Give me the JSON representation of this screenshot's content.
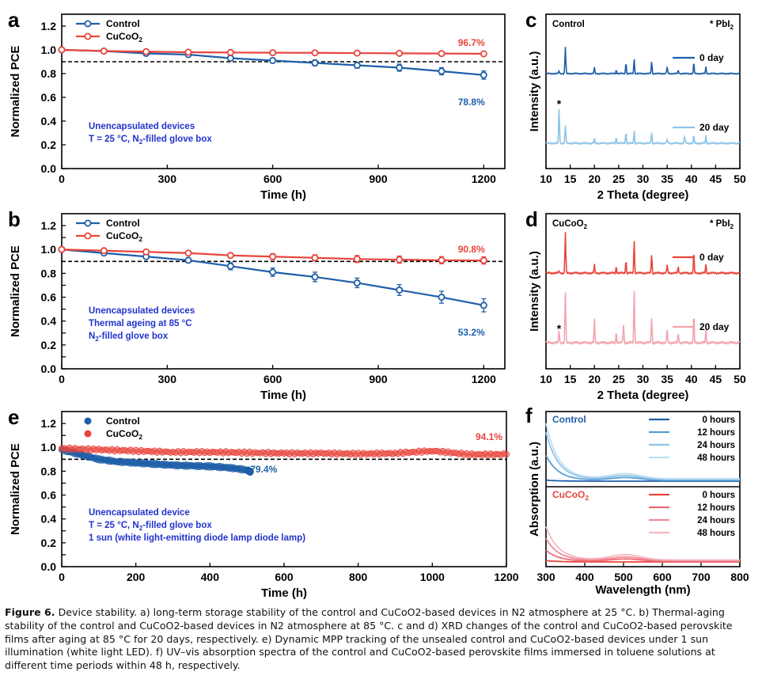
{
  "colors": {
    "control": "#1f5fa8",
    "cucoo2": "#e8453c",
    "control_light": "#8ec4e8",
    "cucoo2_light": "#f4a3ad",
    "label_blue": "#2233cc"
  },
  "chart_data": [
    {
      "id": "a",
      "type": "line",
      "panel_label": "a",
      "xlabel": "Time (h)",
      "ylabel": "Normalized PCE",
      "xlim": [
        0,
        1260
      ],
      "ylim": [
        0,
        1.3
      ],
      "xticks": [
        0,
        300,
        600,
        900,
        1200
      ],
      "yticks": [
        0.0,
        0.2,
        0.4,
        0.6,
        0.8,
        1.0,
        1.2
      ],
      "ytick_labels": [
        "0.0",
        "0.2",
        "0.4",
        "0.6",
        "0.8",
        "1.0",
        "1.2"
      ],
      "reference_line": 0.9,
      "legend": [
        "Control",
        "CuCoO2"
      ],
      "series": [
        {
          "name": "Control",
          "x": [
            0,
            120,
            240,
            360,
            480,
            600,
            720,
            840,
            960,
            1080,
            1200
          ],
          "y": [
            1.0,
            0.99,
            0.97,
            0.96,
            0.93,
            0.91,
            0.89,
            0.87,
            0.85,
            0.82,
            0.788
          ],
          "err": [
            0,
            0.005,
            0.01,
            0.01,
            0.015,
            0.02,
            0.025,
            0.025,
            0.03,
            0.03,
            0.035
          ]
        },
        {
          "name": "CuCoO2",
          "x": [
            0,
            120,
            240,
            360,
            480,
            600,
            720,
            840,
            960,
            1080,
            1200
          ],
          "y": [
            1.0,
            0.99,
            0.985,
            0.98,
            0.978,
            0.976,
            0.975,
            0.973,
            0.971,
            0.969,
            0.967
          ],
          "err": [
            0,
            0.004,
            0.004,
            0.005,
            0.005,
            0.005,
            0.006,
            0.006,
            0.006,
            0.006,
            0.006
          ]
        }
      ],
      "annotations": [
        "96.7%",
        "78.8%"
      ],
      "note_lines": [
        "Unencapsulated devices",
        "T = 25 °C, N2-filled glove box"
      ]
    },
    {
      "id": "b",
      "type": "line",
      "panel_label": "b",
      "xlabel": "Time (h)",
      "ylabel": "Normalized PCE",
      "xlim": [
        0,
        1260
      ],
      "ylim": [
        0,
        1.3
      ],
      "xticks": [
        0,
        300,
        600,
        900,
        1200
      ],
      "yticks": [
        0.0,
        0.1,
        0.2,
        0.3,
        0.4,
        0.5,
        0.6,
        0.7,
        0.8,
        0.9,
        1.0,
        1.1,
        1.2
      ],
      "ytick_labels": [
        "0.0",
        "0.1",
        "0.2",
        "0.3",
        "0.4",
        "0.5",
        "0.6",
        "0.7",
        "0.8",
        "0.9",
        "1.0",
        "1.1",
        "1.2"
      ],
      "reference_line": 0.9,
      "legend": [
        "Control",
        "CuCoO2"
      ],
      "series": [
        {
          "name": "Control",
          "x": [
            0,
            120,
            240,
            360,
            480,
            600,
            720,
            840,
            960,
            1080,
            1200
          ],
          "y": [
            1.0,
            0.97,
            0.94,
            0.91,
            0.86,
            0.81,
            0.77,
            0.72,
            0.66,
            0.6,
            0.532
          ],
          "err": [
            0,
            0.01,
            0.015,
            0.02,
            0.03,
            0.035,
            0.04,
            0.04,
            0.045,
            0.05,
            0.055
          ]
        },
        {
          "name": "CuCoO2",
          "x": [
            0,
            120,
            240,
            360,
            480,
            600,
            720,
            840,
            960,
            1080,
            1200
          ],
          "y": [
            1.0,
            0.99,
            0.98,
            0.97,
            0.95,
            0.94,
            0.93,
            0.92,
            0.915,
            0.91,
            0.908
          ],
          "err": [
            0,
            0.01,
            0.015,
            0.015,
            0.02,
            0.025,
            0.025,
            0.03,
            0.03,
            0.03,
            0.03
          ]
        }
      ],
      "annotations": [
        "90.8%",
        "53.2%"
      ],
      "note_lines": [
        "Unencapsulated devices",
        "Thermal ageing at 85 °C",
        "N2-filled glove box"
      ]
    },
    {
      "id": "e",
      "type": "scatter",
      "panel_label": "e",
      "xlabel": "Time (h)",
      "ylabel": "Normalized PCE",
      "xlim": [
        0,
        1200
      ],
      "ylim": [
        0,
        1.3
      ],
      "xticks": [
        0,
        200,
        400,
        600,
        800,
        1000,
        1200
      ],
      "yticks": [
        0.0,
        0.1,
        0.2,
        0.3,
        0.4,
        0.5,
        0.6,
        0.7,
        0.8,
        0.9,
        1.0,
        1.1,
        1.2
      ],
      "ytick_labels": [
        "0.0",
        "0.1",
        "0.2",
        "0.3",
        "0.4",
        "0.5",
        "0.6",
        "0.7",
        "0.8",
        "0.9",
        "1.0",
        "1.1",
        "1.2"
      ],
      "reference_line": 0.9,
      "legend": [
        "Control",
        "CuCoO2"
      ],
      "series": [
        {
          "name": "Control",
          "x": [
            0,
            50,
            100,
            150,
            200,
            250,
            300,
            350,
            400,
            450,
            500,
            510
          ],
          "y": [
            0.98,
            0.94,
            0.9,
            0.88,
            0.87,
            0.86,
            0.85,
            0.845,
            0.84,
            0.83,
            0.81,
            0.794
          ]
        },
        {
          "name": "CuCoO2",
          "x": [
            0,
            100,
            200,
            300,
            400,
            500,
            600,
            700,
            800,
            900,
            1000,
            1100,
            1200
          ],
          "y": [
            0.99,
            0.98,
            0.97,
            0.96,
            0.96,
            0.955,
            0.95,
            0.95,
            0.945,
            0.95,
            0.97,
            0.94,
            0.941
          ]
        }
      ],
      "annotations": [
        "94.1%",
        "79.4%"
      ],
      "note_lines": [
        "Unencapsulated device",
        "T = 25 °C, N2-filled glove box",
        "1 sun (white light-emitting diode lamp diode lamp)"
      ]
    },
    {
      "id": "c",
      "type": "line",
      "panel_label": "c",
      "title": "Control",
      "marker_label": "* PbI2",
      "xlabel": "2 Theta (degree)",
      "ylabel": "Intensity (a.u.)",
      "xlim": [
        10,
        50
      ],
      "xticks": [
        10,
        15,
        20,
        25,
        30,
        35,
        40,
        45,
        50
      ],
      "series": [
        {
          "name": "0 day",
          "peaks": [
            [
              14.0,
              1.0
            ],
            [
              12.7,
              0.1
            ],
            [
              20.0,
              0.22
            ],
            [
              24.5,
              0.12
            ],
            [
              26.5,
              0.4
            ],
            [
              28.2,
              0.55
            ],
            [
              31.8,
              0.45
            ],
            [
              35.0,
              0.25
            ],
            [
              37.3,
              0.12
            ],
            [
              40.5,
              0.4
            ],
            [
              43.0,
              0.25
            ]
          ]
        },
        {
          "name": "20 day",
          "peaks": [
            [
              12.7,
              1.0
            ],
            [
              14.0,
              0.5
            ],
            [
              20.0,
              0.12
            ],
            [
              24.5,
              0.15
            ],
            [
              26.5,
              0.3
            ],
            [
              28.2,
              0.35
            ],
            [
              31.8,
              0.3
            ],
            [
              35.0,
              0.1
            ],
            [
              38.6,
              0.2
            ],
            [
              40.5,
              0.2
            ],
            [
              43.0,
              0.2
            ]
          ]
        }
      ]
    },
    {
      "id": "d",
      "type": "line",
      "panel_label": "d",
      "title": "CuCoO2",
      "marker_label": "* PbI2",
      "xlabel": "2 Theta (degree)",
      "ylabel": "Intensity (a.u.)",
      "xlim": [
        10,
        50
      ],
      "xticks": [
        10,
        15,
        20,
        25,
        30,
        35,
        40,
        45,
        50
      ],
      "series": [
        {
          "name": "0 day",
          "peaks": [
            [
              14.0,
              1.0
            ],
            [
              12.7,
              0.05
            ],
            [
              20.0,
              0.2
            ],
            [
              24.5,
              0.15
            ],
            [
              26.5,
              0.3
            ],
            [
              28.2,
              0.8
            ],
            [
              31.8,
              0.45
            ],
            [
              35.0,
              0.2
            ],
            [
              37.3,
              0.15
            ],
            [
              40.5,
              0.5
            ],
            [
              43.0,
              0.2
            ]
          ]
        },
        {
          "name": "20 day",
          "peaks": [
            [
              12.7,
              0.25
            ],
            [
              14.0,
              1.0
            ],
            [
              20.0,
              0.45
            ],
            [
              24.5,
              0.2
            ],
            [
              26.0,
              0.35
            ],
            [
              28.2,
              1.05
            ],
            [
              31.8,
              0.5
            ],
            [
              35.0,
              0.25
            ],
            [
              37.3,
              0.18
            ],
            [
              40.5,
              0.55
            ],
            [
              43.0,
              0.25
            ]
          ]
        }
      ]
    },
    {
      "id": "f",
      "type": "line",
      "panel_label": "f",
      "xlabel": "Wavelength (nm)",
      "ylabel": "Absorption (a.u.)",
      "xlim": [
        300,
        800
      ],
      "xticks": [
        300,
        400,
        500,
        600,
        700,
        800
      ],
      "subplots": [
        {
          "title": "Control",
          "series": [
            {
              "name": "0 hours",
              "amp": 0.02,
              "hump": 0.0
            },
            {
              "name": "12 hours",
              "amp": 0.45,
              "hump": 0.05
            },
            {
              "name": "24 hours",
              "amp": 0.85,
              "hump": 0.07
            },
            {
              "name": "48 hours",
              "amp": 1.0,
              "hump": 0.09
            }
          ]
        },
        {
          "title": "CuCoO2",
          "series": [
            {
              "name": "0 hours",
              "amp": 0.03,
              "hump": 0.0
            },
            {
              "name": "12 hours",
              "amp": 0.25,
              "hump": 0.05
            },
            {
              "name": "24 hours",
              "amp": 0.5,
              "hump": 0.08
            },
            {
              "name": "48 hours",
              "amp": 0.75,
              "hump": 0.12
            }
          ]
        }
      ]
    }
  ],
  "caption": {
    "label": "Figure 6.",
    "text": "Device stability. a) long-term storage stability of the control and CuCoO2-based devices in N2 atmosphere at 25 °C. b) Thermal-aging stability of the control and CuCoO2-based devices in N2 atmosphere at 85 °C. c and d) XRD changes of the control and CuCoO2-based perovskite films after aging at 85 °C for 20 days, respectively. e) Dynamic MPP tracking of the unsealed control and CuCoO2-based devices under 1 sun illumination (white light LED). f) UV–vis absorption spectra of the control and CuCoO2-based perovskite films immersed in toluene solutions at different time periods within 48 h, respectively."
  }
}
